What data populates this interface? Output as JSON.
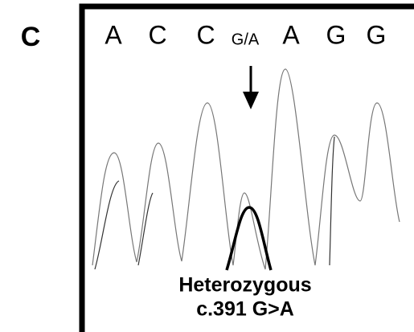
{
  "panel_label": "C",
  "bases": [
    "A",
    "C",
    "C",
    "G/A",
    "A",
    "G",
    "G"
  ],
  "annotation": {
    "line1": "Heterozygous",
    "line2": "c.391 G>A"
  }
}
